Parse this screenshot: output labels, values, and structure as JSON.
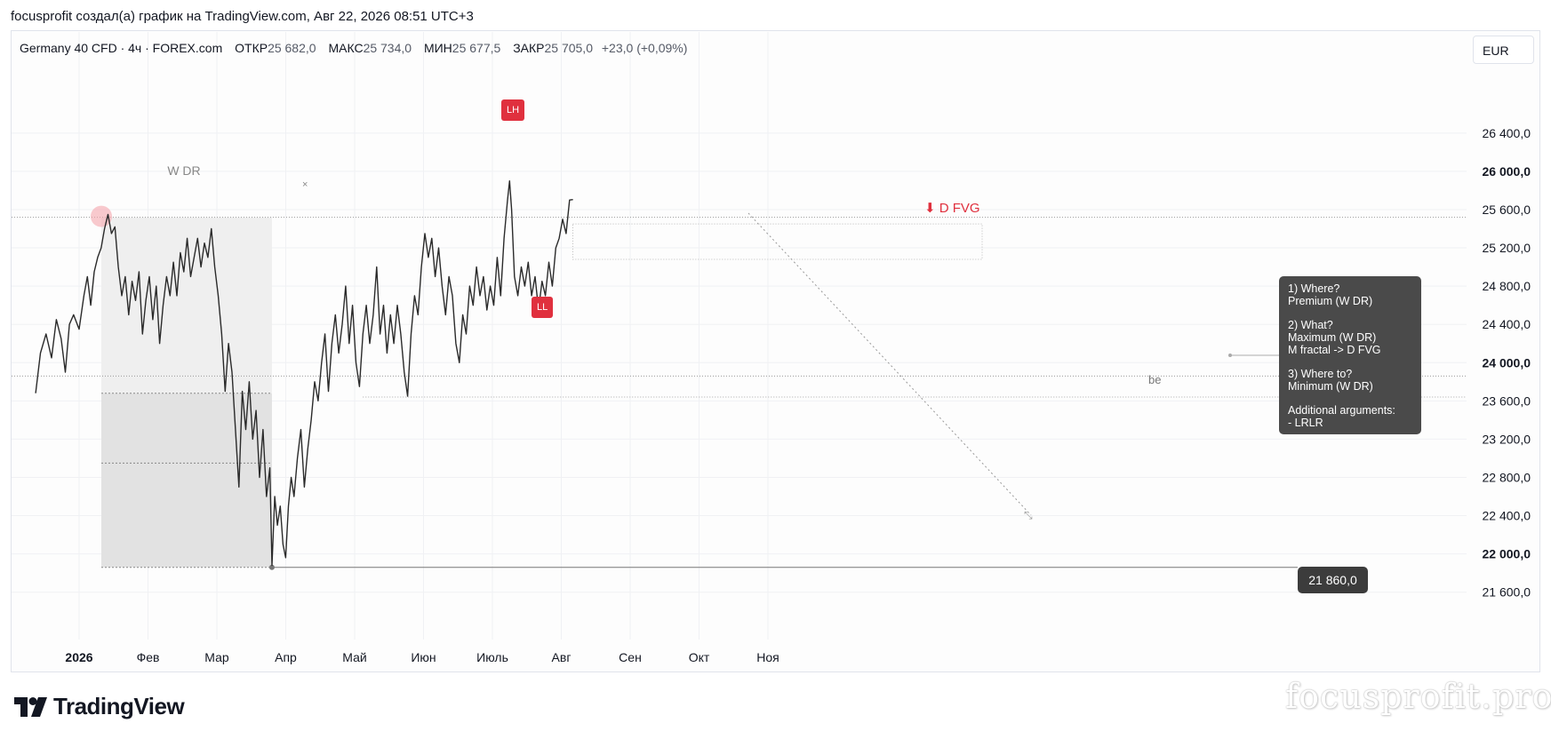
{
  "header": {
    "caption": "focusprofit создал(а) график на TradingView.com, Авг 22, 2026 08:51 UTC+3"
  },
  "symbol": {
    "name": "Germany 40 CFD · 4ч · FOREX.com",
    "open_label": "ОТКР",
    "open": "25 682,0",
    "high_label": "МАКС",
    "high": "25 734,0",
    "low_label": "МИН",
    "low": "25 677,5",
    "close_label": "ЗАКР",
    "close": "25 705,0",
    "change": "+23,0 (+0,09%)"
  },
  "currency": "EUR",
  "chart_data": {
    "type": "line",
    "title": "",
    "xlabel": "",
    "ylabel": "",
    "ylim": [
      21300,
      26900
    ],
    "x_ticks": [
      {
        "label": "2026",
        "m": 0.0,
        "bold": true
      },
      {
        "label": "Фев",
        "m": 1.0
      },
      {
        "label": "Мар",
        "m": 2.0
      },
      {
        "label": "Апр",
        "m": 3.0
      },
      {
        "label": "Май",
        "m": 4.0
      },
      {
        "label": "Июн",
        "m": 5.0
      },
      {
        "label": "Июль",
        "m": 6.0
      },
      {
        "label": "Авг",
        "m": 7.0
      },
      {
        "label": "Сен",
        "m": 8.0
      },
      {
        "label": "Окт",
        "m": 9.0
      },
      {
        "label": "Ноя",
        "m": 10.0
      }
    ],
    "y_ticks": [
      {
        "label": "26 400,0",
        "v": 26400
      },
      {
        "label": "26 000,0",
        "v": 26000,
        "bold": true
      },
      {
        "label": "25 600,0",
        "v": 25600
      },
      {
        "label": "25 200,0",
        "v": 25200
      },
      {
        "label": "24 800,0",
        "v": 24800
      },
      {
        "label": "24 400,0",
        "v": 24400
      },
      {
        "label": "24 000,0",
        "v": 24000,
        "bold": true
      },
      {
        "label": "23 600,0",
        "v": 23600
      },
      {
        "label": "23 200,0",
        "v": 23200
      },
      {
        "label": "22 800,0",
        "v": 22800
      },
      {
        "label": "22 400,0",
        "v": 22400
      },
      {
        "label": "22 000,0",
        "v": 22000,
        "bold": true
      },
      {
        "label": "21 600,0",
        "v": 21600
      }
    ],
    "series": [
      {
        "values": [
          [
            -0.85,
            23680
          ],
          [
            -0.78,
            24100
          ],
          [
            -0.7,
            24300
          ],
          [
            -0.62,
            24050
          ],
          [
            -0.55,
            24450
          ],
          [
            -0.48,
            24250
          ],
          [
            -0.42,
            23900
          ],
          [
            -0.36,
            24400
          ],
          [
            -0.3,
            24500
          ],
          [
            -0.22,
            24350
          ],
          [
            -0.15,
            24700
          ],
          [
            -0.1,
            24900
          ],
          [
            -0.05,
            24600
          ],
          [
            0.0,
            24950
          ],
          [
            0.05,
            25100
          ],
          [
            0.1,
            25200
          ],
          [
            0.15,
            25400
          ],
          [
            0.2,
            25550
          ],
          [
            0.25,
            25350
          ],
          [
            0.3,
            25420
          ],
          [
            0.35,
            25000
          ],
          [
            0.4,
            24700
          ],
          [
            0.45,
            24900
          ],
          [
            0.5,
            24500
          ],
          [
            0.55,
            24850
          ],
          [
            0.6,
            24650
          ],
          [
            0.65,
            24950
          ],
          [
            0.7,
            24300
          ],
          [
            0.75,
            24650
          ],
          [
            0.8,
            24900
          ],
          [
            0.85,
            24450
          ],
          [
            0.9,
            24800
          ],
          [
            0.95,
            24200
          ],
          [
            1.0,
            24600
          ],
          [
            1.05,
            24900
          ],
          [
            1.1,
            24700
          ],
          [
            1.15,
            25050
          ],
          [
            1.2,
            24700
          ],
          [
            1.25,
            25150
          ],
          [
            1.3,
            24950
          ],
          [
            1.35,
            25300
          ],
          [
            1.4,
            24900
          ],
          [
            1.45,
            25100
          ],
          [
            1.5,
            25300
          ],
          [
            1.55,
            25000
          ],
          [
            1.6,
            25250
          ],
          [
            1.65,
            25100
          ],
          [
            1.7,
            25400
          ],
          [
            1.75,
            25000
          ],
          [
            1.8,
            24700
          ],
          [
            1.85,
            24300
          ],
          [
            1.9,
            23700
          ],
          [
            1.95,
            24200
          ],
          [
            2.0,
            23900
          ],
          [
            2.05,
            23300
          ],
          [
            2.1,
            22700
          ],
          [
            2.15,
            23700
          ],
          [
            2.2,
            23300
          ],
          [
            2.25,
            23800
          ],
          [
            2.3,
            23200
          ],
          [
            2.35,
            23500
          ],
          [
            2.4,
            22800
          ],
          [
            2.45,
            23300
          ],
          [
            2.5,
            22600
          ],
          [
            2.55,
            22900
          ],
          [
            2.58,
            21880
          ],
          [
            2.62,
            22600
          ],
          [
            2.66,
            22300
          ],
          [
            2.7,
            22500
          ],
          [
            2.74,
            22100
          ],
          [
            2.78,
            21960
          ],
          [
            2.82,
            22500
          ],
          [
            2.86,
            22800
          ],
          [
            2.9,
            22600
          ],
          [
            2.95,
            23000
          ],
          [
            3.0,
            23300
          ],
          [
            3.05,
            22700
          ],
          [
            3.1,
            23100
          ],
          [
            3.15,
            23400
          ],
          [
            3.2,
            23800
          ],
          [
            3.25,
            23600
          ],
          [
            3.3,
            24000
          ],
          [
            3.35,
            24300
          ],
          [
            3.4,
            23700
          ],
          [
            3.45,
            24200
          ],
          [
            3.5,
            24500
          ],
          [
            3.55,
            24100
          ],
          [
            3.6,
            24400
          ],
          [
            3.65,
            24800
          ],
          [
            3.7,
            24200
          ],
          [
            3.75,
            24600
          ],
          [
            3.8,
            24000
          ],
          [
            3.85,
            23750
          ],
          [
            3.9,
            24300
          ],
          [
            3.95,
            24600
          ],
          [
            4.0,
            24200
          ],
          [
            4.05,
            24500
          ],
          [
            4.1,
            25000
          ],
          [
            4.15,
            24300
          ],
          [
            4.2,
            24600
          ],
          [
            4.25,
            24100
          ],
          [
            4.3,
            24500
          ],
          [
            4.35,
            24200
          ],
          [
            4.4,
            24600
          ],
          [
            4.45,
            24300
          ],
          [
            4.5,
            23900
          ],
          [
            4.55,
            23650
          ],
          [
            4.6,
            24300
          ],
          [
            4.65,
            24700
          ],
          [
            4.7,
            24500
          ],
          [
            4.75,
            25000
          ],
          [
            4.8,
            25350
          ],
          [
            4.85,
            25100
          ],
          [
            4.9,
            25300
          ],
          [
            4.95,
            24900
          ],
          [
            5.0,
            25200
          ],
          [
            5.05,
            24800
          ],
          [
            5.1,
            24500
          ],
          [
            5.15,
            24900
          ],
          [
            5.2,
            24700
          ],
          [
            5.25,
            24200
          ],
          [
            5.3,
            24000
          ],
          [
            5.35,
            24500
          ],
          [
            5.4,
            24300
          ],
          [
            5.45,
            24800
          ],
          [
            5.5,
            24600
          ],
          [
            5.55,
            25000
          ],
          [
            5.6,
            24700
          ],
          [
            5.65,
            24900
          ],
          [
            5.7,
            24550
          ],
          [
            5.75,
            24800
          ],
          [
            5.8,
            24600
          ],
          [
            5.85,
            25100
          ],
          [
            5.9,
            24700
          ],
          [
            5.95,
            25300
          ],
          [
            6.0,
            25700
          ],
          [
            6.03,
            25900
          ],
          [
            6.06,
            25600
          ],
          [
            6.1,
            24900
          ],
          [
            6.15,
            24700
          ],
          [
            6.2,
            25000
          ],
          [
            6.25,
            24800
          ],
          [
            6.3,
            25050
          ],
          [
            6.35,
            24700
          ],
          [
            6.4,
            24900
          ],
          [
            6.45,
            24550
          ],
          [
            6.5,
            24850
          ],
          [
            6.55,
            24700
          ],
          [
            6.6,
            25050
          ],
          [
            6.65,
            24800
          ],
          [
            6.7,
            25200
          ],
          [
            6.75,
            25300
          ],
          [
            6.8,
            25500
          ],
          [
            6.85,
            25350
          ],
          [
            6.9,
            25700
          ],
          [
            6.95,
            25705
          ]
        ]
      }
    ],
    "annotations": {
      "wdr_label": "W DR",
      "lh_label": "LH",
      "ll_label": "LL",
      "fvg_label": "⬇ D FVG",
      "be_label": "be",
      "price_tag": "21 860,0"
    }
  },
  "info_box": {
    "lines": [
      "1) Where?",
      "Premium (W DR)",
      "",
      "2) What?",
      "Maximum (W DR)",
      "M fractal -> D FVG",
      "",
      "3) Where to?",
      "Minimum (W DR)",
      "",
      "Additional arguments:",
      "- LRLR"
    ]
  },
  "branding": {
    "logo_text": "TradingView",
    "watermark": "focusprofit.pro"
  }
}
